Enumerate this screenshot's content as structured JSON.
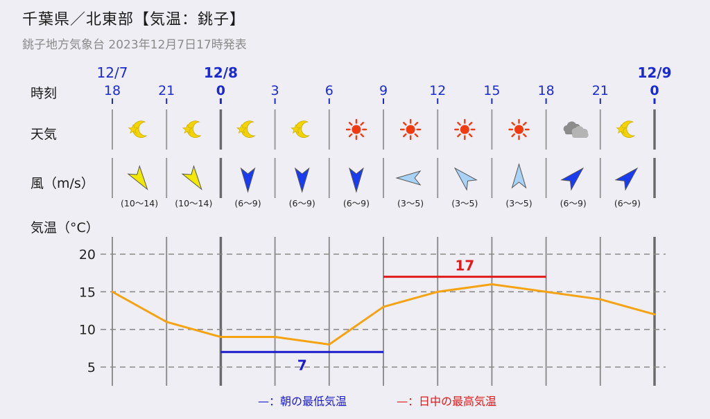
{
  "header": {
    "title": "千葉県／北東部【気温：銚子】",
    "subtitle": "銚子地方気象台 2023年12月7日17時発表"
  },
  "rows": {
    "time_label": "時刻",
    "weather_label": "天気",
    "wind_label": "風（m/s）",
    "temp_label": "気温（°C）"
  },
  "dates": [
    {
      "label": "12/7",
      "index": 0,
      "bold": false
    },
    {
      "label": "12/8",
      "index": 2,
      "bold": true
    },
    {
      "label": "12/9",
      "index": 10,
      "bold": true
    }
  ],
  "hours": [
    "18",
    "21",
    "0",
    "3",
    "6",
    "9",
    "12",
    "15",
    "18",
    "21",
    "0"
  ],
  "weather": [
    {
      "icon": "moon-star-icon"
    },
    {
      "icon": "moon-star-icon"
    },
    {
      "icon": "moon-star-icon"
    },
    {
      "icon": "moon-star-icon"
    },
    {
      "icon": "sun-icon"
    },
    {
      "icon": "sun-icon"
    },
    {
      "icon": "sun-icon"
    },
    {
      "icon": "sun-icon"
    },
    {
      "icon": "cloud-icon"
    },
    {
      "icon": "moon-star-icon"
    }
  ],
  "wind": [
    {
      "range": "(10〜14)",
      "direction": "north-northwest",
      "color": "#f2e800"
    },
    {
      "range": "(10〜14)",
      "direction": "north-northwest",
      "color": "#f2e800"
    },
    {
      "range": "(6〜9)",
      "direction": "north",
      "color": "#1a3cf0"
    },
    {
      "range": "(6〜9)",
      "direction": "north",
      "color": "#1a3cf0"
    },
    {
      "range": "(6〜9)",
      "direction": "north",
      "color": "#1a3cf0"
    },
    {
      "range": "(3〜5)",
      "direction": "east",
      "color": "#a8d2f6"
    },
    {
      "range": "(3〜5)",
      "direction": "southeast",
      "color": "#a8d2f6"
    },
    {
      "range": "(3〜5)",
      "direction": "south",
      "color": "#a8d2f6"
    },
    {
      "range": "(6〜9)",
      "direction": "southwest",
      "color": "#1a3cf0"
    },
    {
      "range": "(6〜9)",
      "direction": "southwest",
      "color": "#1a3cf0"
    }
  ],
  "legend": {
    "low": "—：朝の最低気温",
    "high": "—：日中の最高気温"
  },
  "chart_data": {
    "type": "line",
    "x": [
      "12/7 18",
      "12/7 21",
      "12/8 0",
      "12/8 3",
      "12/8 6",
      "12/8 9",
      "12/8 12",
      "12/8 15",
      "12/8 18",
      "12/8 21",
      "12/9 0"
    ],
    "series": [
      {
        "values": [
          15,
          11,
          9,
          9,
          8,
          13,
          15,
          16,
          15,
          14,
          12
        ],
        "color": "#f5a312"
      }
    ],
    "min_temp": {
      "value": 7,
      "label": "7",
      "from_index": 2,
      "to_index": 5,
      "color": "#1a1acc"
    },
    "max_temp": {
      "value": 17,
      "label": "17",
      "from_index": 5,
      "to_index": 8,
      "color": "#e01a1a"
    },
    "yticks": [
      20,
      15,
      10,
      5
    ],
    "ylim": [
      2,
      22.5
    ],
    "grid": true
  }
}
